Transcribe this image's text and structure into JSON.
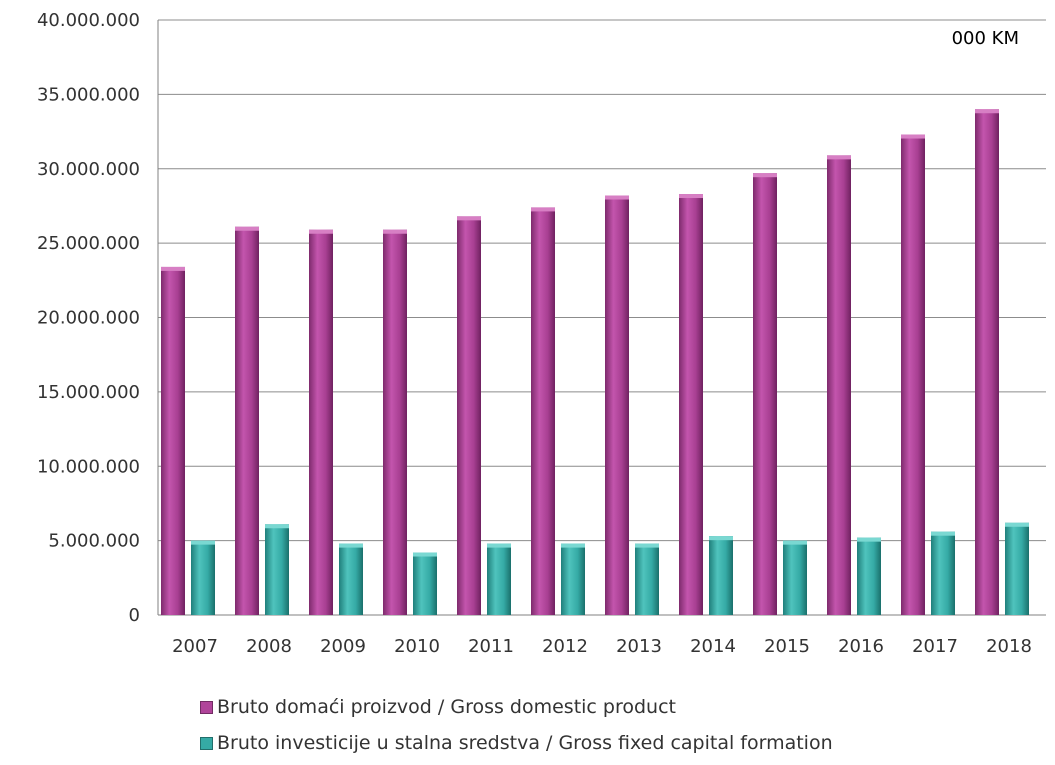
{
  "chart_data": {
    "type": "bar",
    "unit_label": "000 KM",
    "categories": [
      "2007",
      "2008",
      "2009",
      "2010",
      "2011",
      "2012",
      "2013",
      "2014",
      "2015",
      "2016",
      "2017",
      "2018"
    ],
    "series": [
      {
        "name": "Bruto domaći proizvod / Gross domestic product",
        "color": "#b0449a",
        "values": [
          23400000,
          26100000,
          25900000,
          25900000,
          26800000,
          27400000,
          28200000,
          28300000,
          29700000,
          30900000,
          32300000,
          34000000
        ]
      },
      {
        "name": "Bruto investicije u stalna sredstva / Gross fixed capital formation",
        "color": "#35aaa5",
        "values": [
          5000000,
          6100000,
          4800000,
          4200000,
          4800000,
          4800000,
          4800000,
          5300000,
          5000000,
          5200000,
          5600000,
          6200000
        ]
      }
    ],
    "y_ticks": [
      "0",
      "5.000.000",
      "10.000.000",
      "15.000.000",
      "20.000.000",
      "25.000.000",
      "30.000.000",
      "35.000.000",
      "40.000.000"
    ],
    "ylim": [
      0,
      40000000
    ],
    "grid": true,
    "legend_position": "bottom"
  }
}
